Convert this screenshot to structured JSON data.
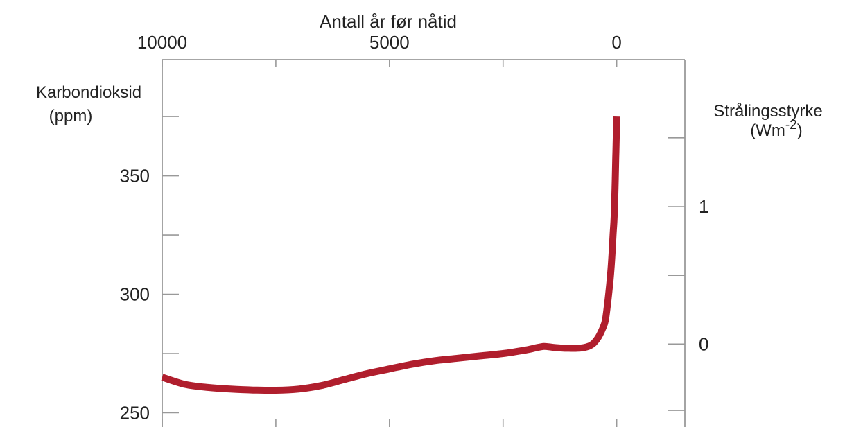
{
  "chart_data": {
    "type": "line",
    "title": "",
    "x_axis": {
      "label": "Antall år før nåtid",
      "position": "top",
      "reversed": true,
      "ticks": [
        10000,
        5000,
        0
      ],
      "minor_ticks": [
        10000,
        7500,
        5000,
        2500,
        0
      ],
      "range": [
        10000,
        -1500
      ]
    },
    "y_axis_left": {
      "label_line1": "Karbondioksid",
      "label_line2": "(ppm)",
      "ticks": [
        250,
        300,
        350
      ],
      "minor_ticks": [
        250,
        275,
        300,
        325,
        350,
        375
      ],
      "range": [
        244,
        399
      ]
    },
    "y_axis_right": {
      "label_line1": "Strålingsstyrke",
      "label_line2_main": "(Wm",
      "label_line2_sup": "-2",
      "label_line2_end": ")",
      "ticks": [
        {
          "value": 0,
          "ppm": 279
        },
        {
          "value": 1,
          "ppm": 337
        }
      ],
      "minor_ticks_ppm": [
        251,
        279,
        308,
        337,
        366
      ]
    },
    "series": [
      {
        "color": "#b01e2d",
        "x": [
          10000,
          9500,
          9000,
          8500,
          8000,
          7500,
          7000,
          6500,
          6000,
          5500,
          5000,
          4500,
          4000,
          3500,
          3000,
          2500,
          2000,
          1800,
          1600,
          1400,
          1200,
          1000,
          900,
          800,
          700,
          600,
          500,
          400,
          300,
          250,
          200,
          150,
          120,
          100,
          80,
          60,
          50,
          40,
          30,
          20,
          10,
          0
        ],
        "values": [
          265,
          262,
          260.7,
          260,
          259.6,
          259.5,
          260,
          261.5,
          264,
          266.5,
          268.5,
          270.5,
          272,
          273,
          274,
          275,
          276.5,
          277.3,
          278,
          277.6,
          277.3,
          277.2,
          277.2,
          277.3,
          277.6,
          278.2,
          279.5,
          282,
          286,
          289,
          296,
          305,
          312,
          318,
          325,
          331,
          336,
          342,
          350,
          358,
          366,
          375
        ]
      }
    ],
    "grid": false,
    "legend": "none"
  }
}
